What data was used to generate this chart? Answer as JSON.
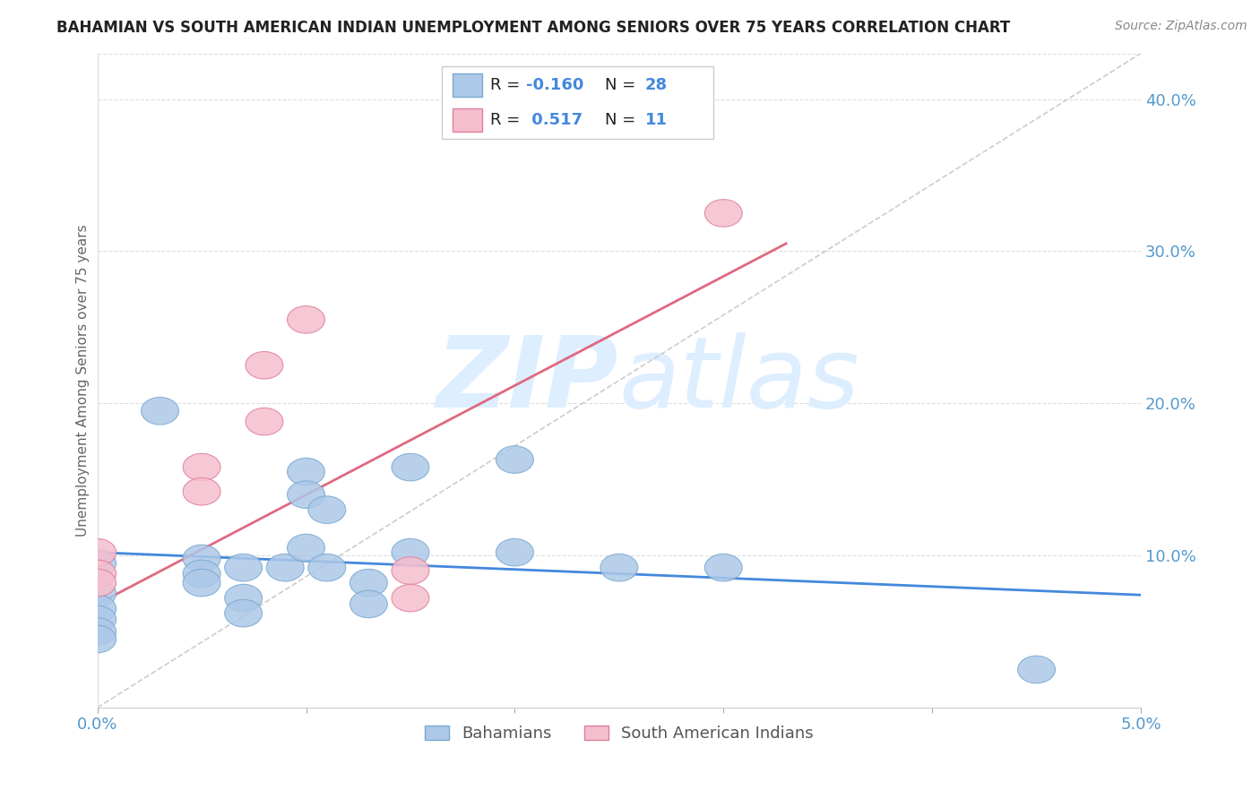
{
  "title": "BAHAMIAN VS SOUTH AMERICAN INDIAN UNEMPLOYMENT AMONG SENIORS OVER 75 YEARS CORRELATION CHART",
  "source": "Source: ZipAtlas.com",
  "ylabel": "Unemployment Among Seniors over 75 years",
  "xlim": [
    0.0,
    0.05
  ],
  "ylim": [
    0.0,
    0.43
  ],
  "yticks_right": [
    0.1,
    0.2,
    0.3,
    0.4
  ],
  "ytick_labels_right": [
    "10.0%",
    "20.0%",
    "30.0%",
    "40.0%"
  ],
  "xticks": [
    0.0,
    0.01,
    0.02,
    0.03,
    0.04,
    0.05
  ],
  "xtick_labels": [
    "0.0%",
    "",
    "",
    "",
    "",
    "5.0%"
  ],
  "bahamian_color": "#adc8e8",
  "bahamian_edge_color": "#7aaad0",
  "south_american_color": "#f5bece",
  "south_american_edge_color": "#e08098",
  "blue_line_color": "#4488dd",
  "pink_line_color": "#e06880",
  "diagonal_color": "#cccccc",
  "watermark_color": "#ddeeff",
  "text_color_dark": "#333333",
  "text_color_blue": "#4488dd",
  "axis_color": "#5599cc",
  "legend_text_dark": "#222222",
  "legend_r1": "-0.160",
  "legend_n1": "28",
  "legend_r2": "0.517",
  "legend_n2": "11",
  "bahamian_points": [
    [
      0.0,
      0.095
    ],
    [
      0.0,
      0.075
    ],
    [
      0.0,
      0.065
    ],
    [
      0.0,
      0.058
    ],
    [
      0.0,
      0.05
    ],
    [
      0.0,
      0.045
    ],
    [
      0.003,
      0.195
    ],
    [
      0.005,
      0.098
    ],
    [
      0.005,
      0.088
    ],
    [
      0.005,
      0.082
    ],
    [
      0.007,
      0.092
    ],
    [
      0.007,
      0.072
    ],
    [
      0.007,
      0.062
    ],
    [
      0.009,
      0.092
    ],
    [
      0.01,
      0.155
    ],
    [
      0.01,
      0.14
    ],
    [
      0.01,
      0.105
    ],
    [
      0.011,
      0.13
    ],
    [
      0.011,
      0.092
    ],
    [
      0.013,
      0.082
    ],
    [
      0.013,
      0.068
    ],
    [
      0.015,
      0.158
    ],
    [
      0.015,
      0.102
    ],
    [
      0.02,
      0.163
    ],
    [
      0.02,
      0.102
    ],
    [
      0.025,
      0.092
    ],
    [
      0.03,
      0.092
    ],
    [
      0.045,
      0.025
    ]
  ],
  "south_american_points": [
    [
      0.0,
      0.102
    ],
    [
      0.0,
      0.088
    ],
    [
      0.0,
      0.082
    ],
    [
      0.005,
      0.158
    ],
    [
      0.005,
      0.142
    ],
    [
      0.008,
      0.225
    ],
    [
      0.008,
      0.188
    ],
    [
      0.01,
      0.255
    ],
    [
      0.015,
      0.09
    ],
    [
      0.015,
      0.072
    ],
    [
      0.03,
      0.325
    ]
  ],
  "bahamian_line_x": [
    0.0,
    0.05
  ],
  "bahamian_line_y": [
    0.102,
    0.074
  ],
  "south_american_line_x": [
    0.0,
    0.033
  ],
  "south_american_line_y": [
    0.068,
    0.305
  ]
}
